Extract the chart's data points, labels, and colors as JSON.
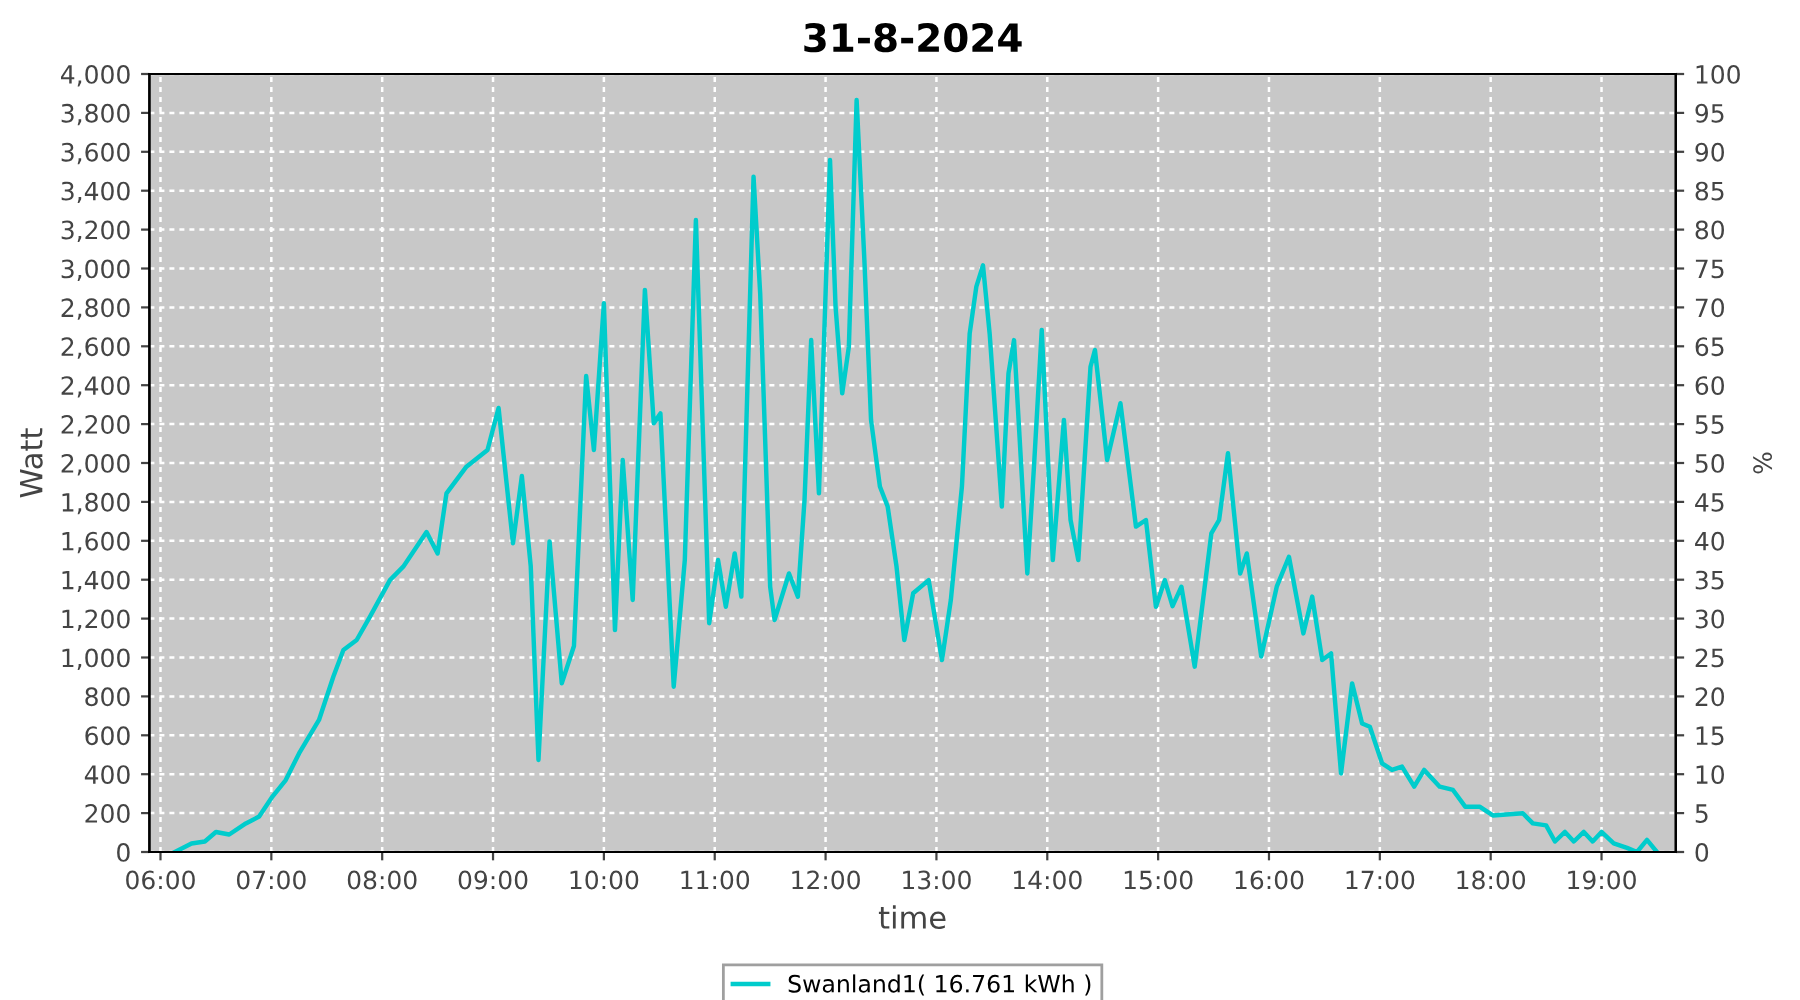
{
  "chart_data": {
    "type": "line",
    "title": "31-8-2024",
    "xlabel": "time",
    "ylabel": "Watt",
    "y2label": "%",
    "x": [
      6.13,
      6.28,
      6.4,
      6.5,
      6.62,
      6.77,
      6.89,
      7.01,
      7.13,
      7.25,
      7.34,
      7.43,
      7.56,
      7.65,
      7.77,
      7.89,
      8.07,
      8.19,
      8.4,
      8.5,
      8.58,
      8.76,
      8.95,
      9.05,
      9.18,
      9.26,
      9.34,
      9.41,
      9.51,
      9.62,
      9.73,
      9.84,
      9.91,
      10.0,
      10.1,
      10.17,
      10.26,
      10.37,
      10.45,
      10.51,
      10.63,
      10.73,
      10.83,
      10.95,
      11.03,
      11.1,
      11.18,
      11.24,
      11.35,
      11.41,
      11.5,
      11.54,
      11.67,
      11.75,
      11.81,
      11.87,
      11.94,
      12.04,
      12.09,
      12.15,
      12.21,
      12.28,
      12.35,
      12.41,
      12.49,
      12.56,
      12.64,
      12.71,
      12.79,
      12.93,
      13.05,
      13.13,
      13.23,
      13.3,
      13.36,
      13.42,
      13.48,
      13.59,
      13.65,
      13.7,
      13.82,
      13.88,
      13.95,
      14.05,
      14.15,
      14.21,
      14.28,
      14.39,
      14.43,
      14.54,
      14.66,
      14.8,
      14.89,
      14.98,
      15.06,
      15.13,
      15.21,
      15.33,
      15.48,
      15.55,
      15.63,
      15.74,
      15.8,
      15.93,
      16.07,
      16.18,
      16.31,
      16.39,
      16.48,
      16.56,
      16.65,
      16.75,
      16.84,
      16.91,
      17.02,
      17.11,
      17.2,
      17.31,
      17.4,
      17.54,
      17.66,
      17.77,
      17.9,
      18.02,
      18.29,
      18.38,
      18.5,
      18.58,
      18.67,
      18.75,
      18.84,
      18.92,
      19.0,
      19.11,
      19.23,
      19.32,
      19.41,
      19.5
    ],
    "series": [
      {
        "name": "Swanland1( 16.761 kWh )",
        "color": "#00cccc",
        "values": [
          0,
          44,
          54,
          103,
          90,
          147,
          182,
          285,
          370,
          507,
          593,
          679,
          902,
          1039,
          1090,
          1210,
          1398,
          1467,
          1645,
          1535,
          1844,
          1981,
          2067,
          2283,
          1587,
          1933,
          1470,
          473,
          1597,
          867,
          1059,
          2447,
          2067,
          2821,
          1141,
          2015,
          1296,
          2890,
          2204,
          2255,
          850,
          1501,
          3249,
          1176,
          1501,
          1261,
          1535,
          1313,
          3472,
          2872,
          1364,
          1193,
          1432,
          1313,
          1810,
          2632,
          1844,
          3558,
          2804,
          2358,
          2598,
          3866,
          3043,
          2221,
          1879,
          1776,
          1467,
          1090,
          1330,
          1398,
          987,
          1296,
          1879,
          2666,
          2907,
          3016,
          2666,
          1776,
          2461,
          2632,
          1432,
          1981,
          2684,
          1501,
          2221,
          1707,
          1501,
          2495,
          2581,
          2015,
          2307,
          1673,
          1707,
          1261,
          1398,
          1264,
          1364,
          953,
          1638,
          1707,
          2050,
          1432,
          1535,
          1005,
          1364,
          1518,
          1124,
          1313,
          987,
          1021,
          404,
          867,
          661,
          644,
          456,
          422,
          439,
          336,
          422,
          336,
          319,
          233,
          233,
          188,
          199,
          147,
          137,
          54,
          103,
          54,
          103,
          54,
          103,
          44,
          21,
          0,
          62,
          0
        ]
      }
    ],
    "xlim": [
      5.9,
      19.67
    ],
    "xticks": [
      {
        "value": 6,
        "label": "06:00"
      },
      {
        "value": 7,
        "label": "07:00"
      },
      {
        "value": 8,
        "label": "08:00"
      },
      {
        "value": 9,
        "label": "09:00"
      },
      {
        "value": 10,
        "label": "10:00"
      },
      {
        "value": 11,
        "label": "11:00"
      },
      {
        "value": 12,
        "label": "12:00"
      },
      {
        "value": 13,
        "label": "13:00"
      },
      {
        "value": 14,
        "label": "14:00"
      },
      {
        "value": 15,
        "label": "15:00"
      },
      {
        "value": 16,
        "label": "16:00"
      },
      {
        "value": 17,
        "label": "17:00"
      },
      {
        "value": 18,
        "label": "18:00"
      },
      {
        "value": 19,
        "label": "19:00"
      }
    ],
    "ylim": [
      0,
      4000
    ],
    "yticks": [
      0,
      200,
      400,
      600,
      800,
      {
        "value": 1000,
        "label": "1,000"
      },
      {
        "value": 1200,
        "label": "1,200"
      },
      {
        "value": 1400,
        "label": "1,400"
      },
      {
        "value": 1600,
        "label": "1,600"
      },
      {
        "value": 1800,
        "label": "1,800"
      },
      {
        "value": 2000,
        "label": "2,000"
      },
      {
        "value": 2200,
        "label": "2,200"
      },
      {
        "value": 2400,
        "label": "2,400"
      },
      {
        "value": 2600,
        "label": "2,600"
      },
      {
        "value": 2800,
        "label": "2,800"
      },
      {
        "value": 3000,
        "label": "3,000"
      },
      {
        "value": 3200,
        "label": "3,200"
      },
      {
        "value": 3400,
        "label": "3,400"
      },
      {
        "value": 3600,
        "label": "3,600"
      },
      {
        "value": 3800,
        "label": "3,800"
      },
      {
        "value": 4000,
        "label": "4,000"
      }
    ],
    "y2lim": [
      0,
      100
    ],
    "y2ticks": [
      0,
      5,
      10,
      15,
      20,
      25,
      30,
      35,
      40,
      45,
      50,
      55,
      60,
      65,
      70,
      75,
      80,
      85,
      90,
      95,
      100
    ],
    "grid": true,
    "legend": "bottom",
    "marker": "none",
    "line_style": "solid"
  }
}
